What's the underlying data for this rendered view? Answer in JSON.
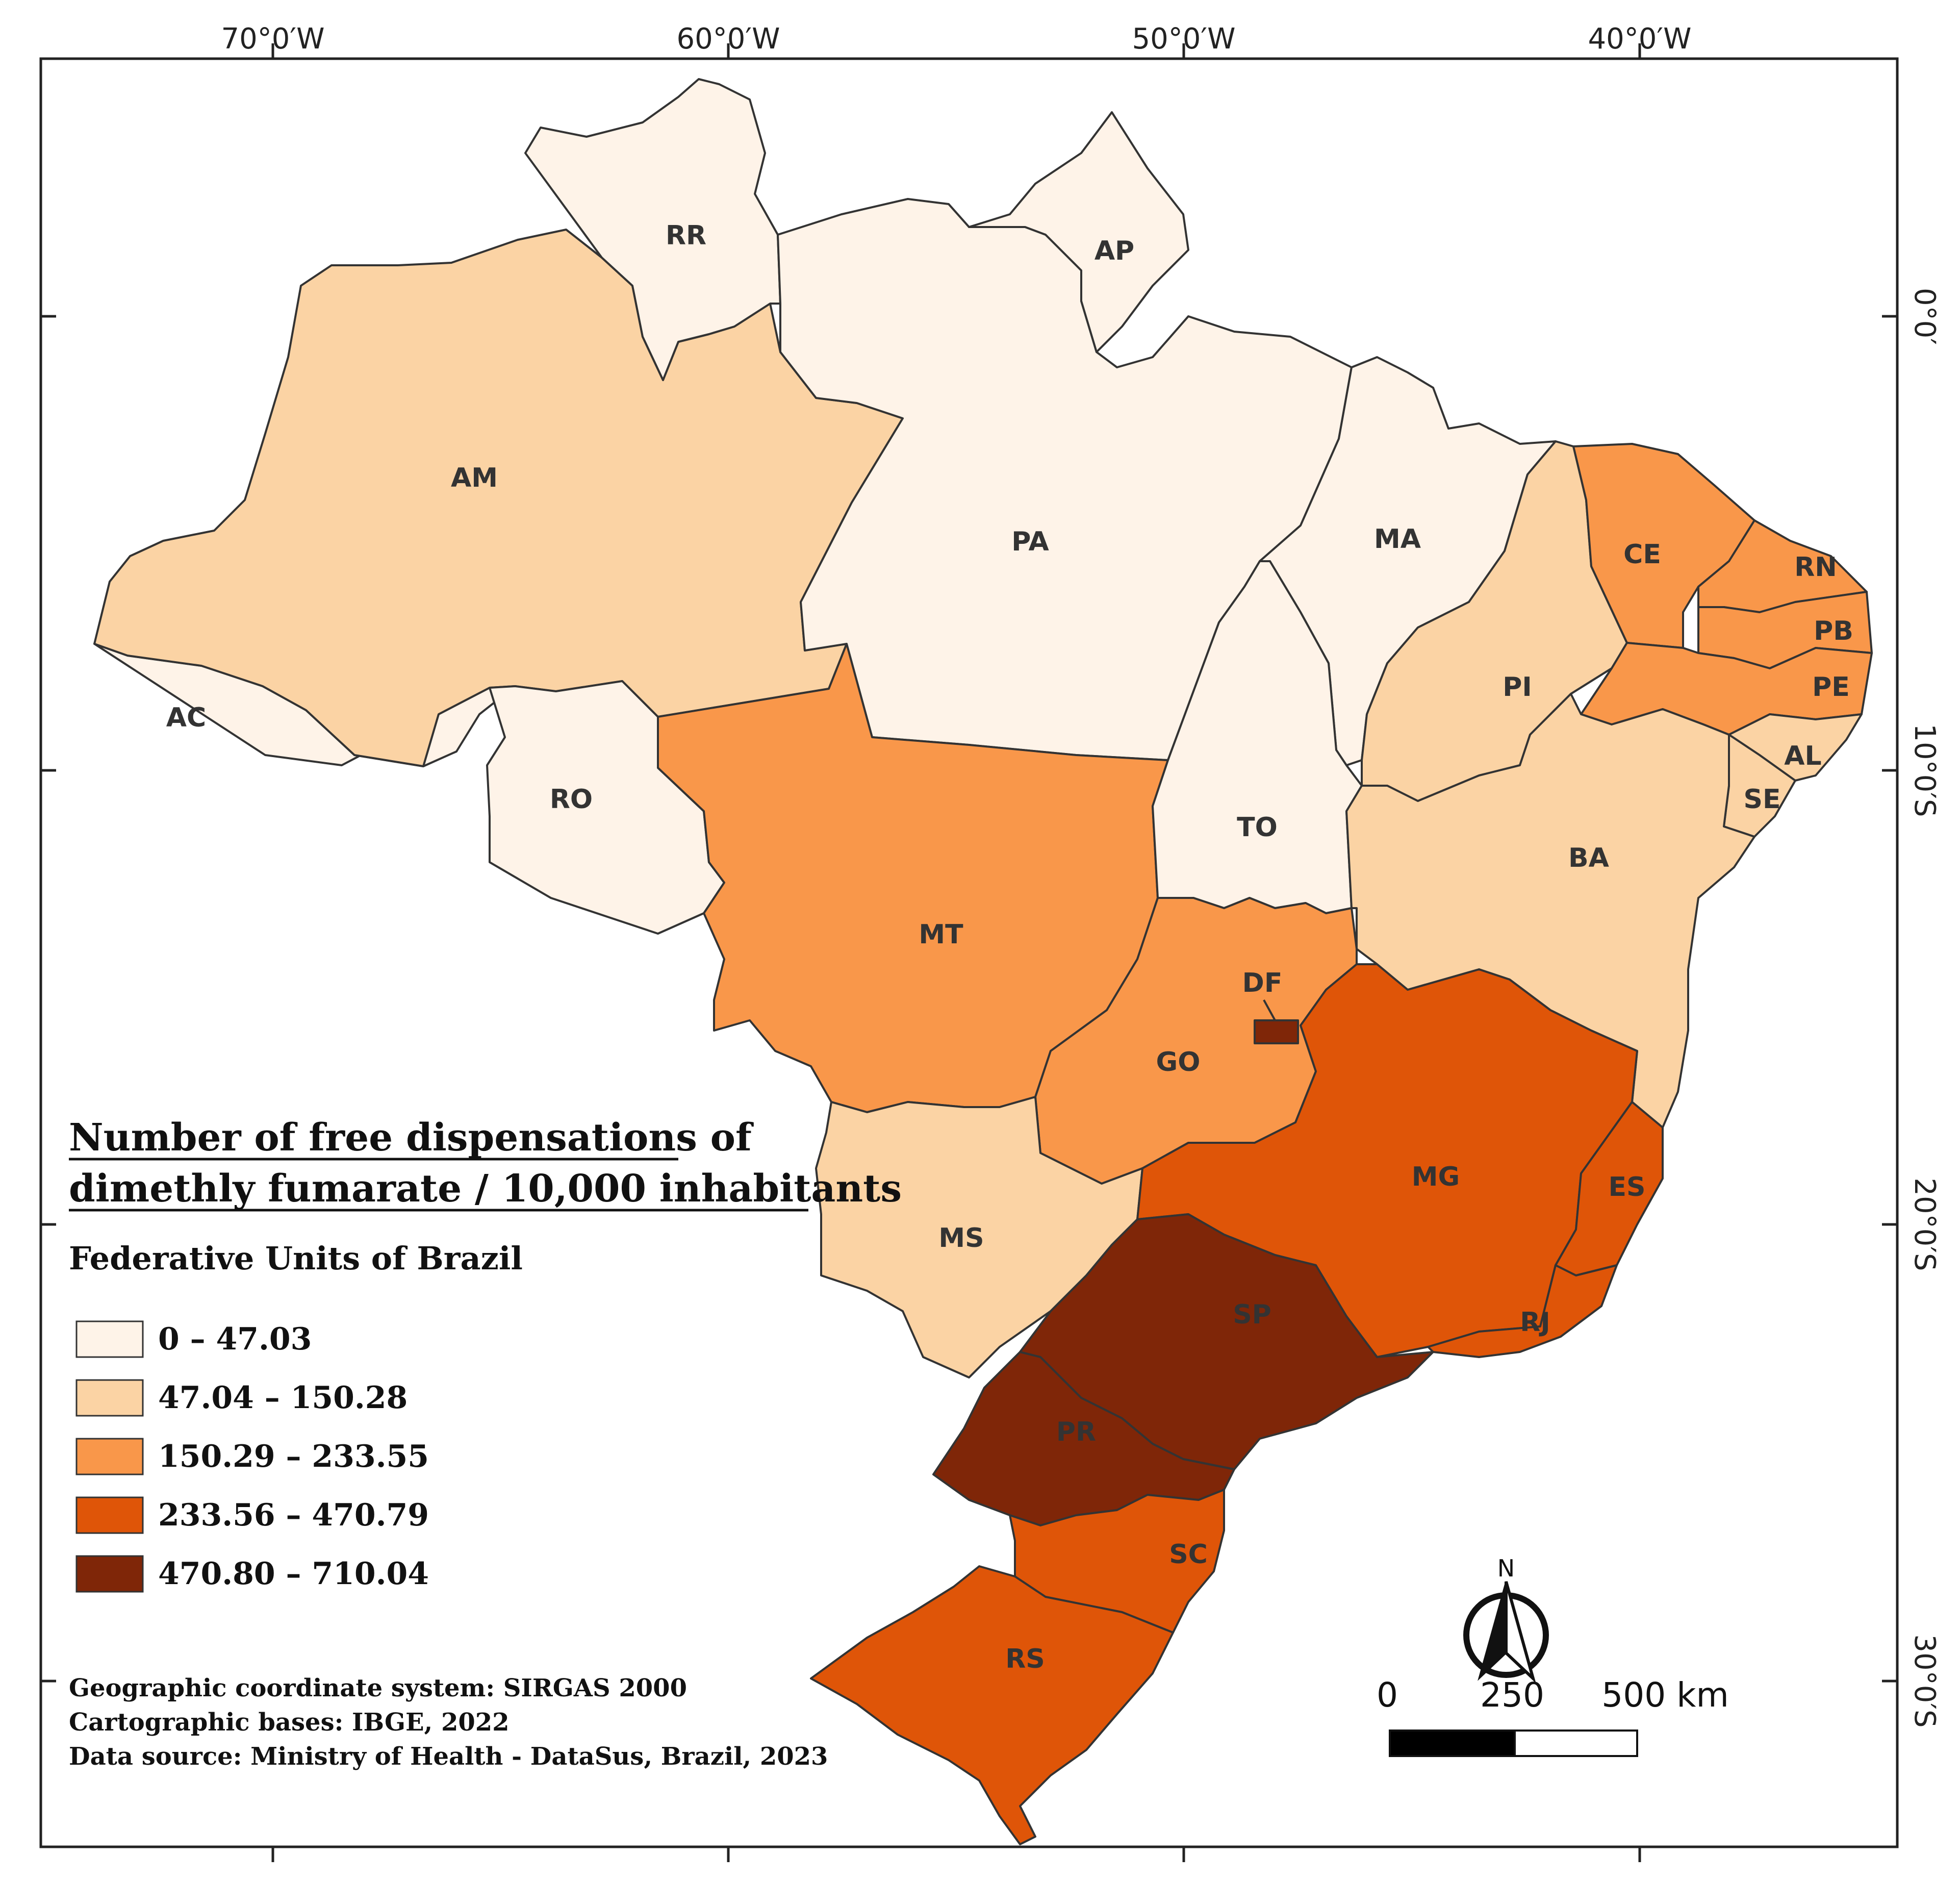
{
  "map": {
    "title_line1": "Number of free dispensations of",
    "title_line2": "dimethly fumarate / 10,000 inhabitants",
    "subtitle": "Federative Units of Brazil",
    "legend": [
      {
        "label": "0 – 47.03",
        "color": "#fef3e8"
      },
      {
        "label": "47.04 – 150.28",
        "color": "#fbd3a4"
      },
      {
        "label": "150.29 – 233.55",
        "color": "#f9974a"
      },
      {
        "label": "233.56 – 470.79",
        "color": "#df5508"
      },
      {
        "label": "470.80 – 710.04",
        "color": "#7f2608"
      }
    ],
    "credits": [
      "Geographic coordinate system: SIRGAS 2000",
      "Cartographic bases: IBGE, 2022",
      "Data source: Ministry of Health - DataSus, Brazil, 2023"
    ],
    "longitude_labels": [
      "70°0′W",
      "60°0′W",
      "50°0′W",
      "40°0′W"
    ],
    "latitude_labels": [
      "0°0′",
      "10°0′S",
      "20°0′S",
      "30°0′S"
    ],
    "scale_bar": {
      "labels": [
        "0",
        "250",
        "500 km"
      ]
    },
    "north_label": "N",
    "states": [
      {
        "code": "AC",
        "class": 0
      },
      {
        "code": "AM",
        "class": 1
      },
      {
        "code": "RR",
        "class": 0
      },
      {
        "code": "PA",
        "class": 0
      },
      {
        "code": "AP",
        "class": 0
      },
      {
        "code": "RO",
        "class": 0
      },
      {
        "code": "MT",
        "class": 2
      },
      {
        "code": "MA",
        "class": 0
      },
      {
        "code": "TO",
        "class": 0
      },
      {
        "code": "PI",
        "class": 1
      },
      {
        "code": "CE",
        "class": 2
      },
      {
        "code": "RN",
        "class": 2
      },
      {
        "code": "PB",
        "class": 2
      },
      {
        "code": "PE",
        "class": 2
      },
      {
        "code": "AL",
        "class": 1
      },
      {
        "code": "SE",
        "class": 1
      },
      {
        "code": "BA",
        "class": 1
      },
      {
        "code": "GO",
        "class": 2
      },
      {
        "code": "DF",
        "class": 4
      },
      {
        "code": "MS",
        "class": 1
      },
      {
        "code": "MG",
        "class": 3
      },
      {
        "code": "ES",
        "class": 3
      },
      {
        "code": "RJ",
        "class": 3
      },
      {
        "code": "SP",
        "class": 4
      },
      {
        "code": "PR",
        "class": 4
      },
      {
        "code": "SC",
        "class": 3
      },
      {
        "code": "RS",
        "class": 3
      }
    ]
  }
}
